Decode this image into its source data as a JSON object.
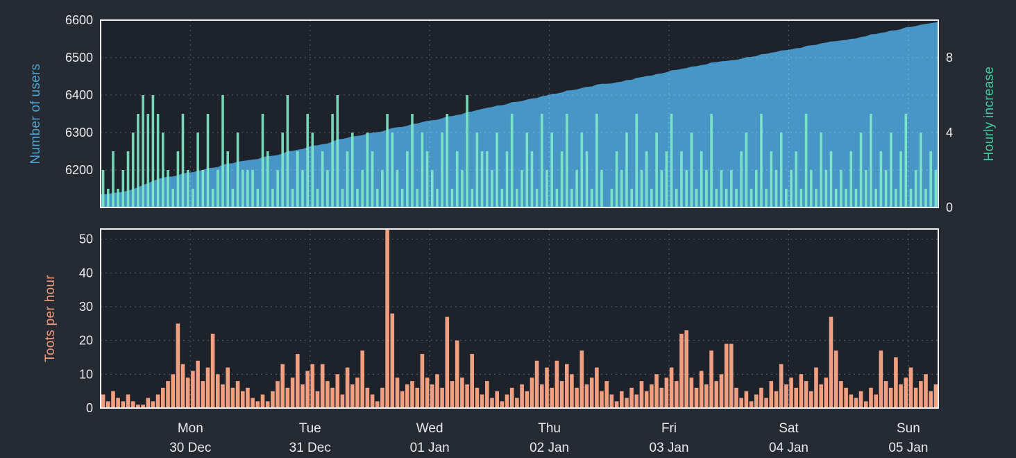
{
  "colors": {
    "background": "#262a33",
    "plot_background": "#1e222b",
    "grid": "rgba(255,255,255,0.28)",
    "border": "#f2f3f5",
    "tick_text": "#e9eaec"
  },
  "x_axis": {
    "day_labels": [
      {
        "day": "Mon",
        "date": "30 Dec"
      },
      {
        "day": "Tue",
        "date": "31 Dec"
      },
      {
        "day": "Wed",
        "date": "01 Jan"
      },
      {
        "day": "Thu",
        "date": "02 Jan"
      },
      {
        "day": "Fri",
        "date": "03 Jan"
      },
      {
        "day": "Sat",
        "date": "04 Jan"
      },
      {
        "day": "Sun",
        "date": "05 Jan"
      }
    ]
  },
  "chart_data": [
    {
      "type": "area+bar",
      "x": {
        "unit": "hour",
        "points": 168,
        "start": "Sun 29 Dec 18:00",
        "end": "Sun 05 Jan 18:00"
      },
      "left_axis": {
        "label": "Number of users",
        "ticks": [
          6200,
          6300,
          6400,
          6500,
          6600
        ],
        "range": [
          6100,
          6600
        ],
        "color": "#4da3cf"
      },
      "right_axis": {
        "label": "Hourly increase",
        "ticks": [
          0,
          4,
          8
        ],
        "range": [
          0,
          10
        ],
        "color": "#3fc9a1"
      },
      "grid": true,
      "series": [
        {
          "name": "Number of users",
          "type": "area",
          "axis": "left",
          "color": "#4796c5",
          "start": 6133,
          "end": 6594,
          "derived_from": "cumulative_sum_of_hourly_increase"
        },
        {
          "name": "Hourly increase",
          "type": "bar",
          "axis": "right",
          "color": "#7feac6",
          "values": [
            2,
            1,
            3,
            1,
            2,
            3,
            4,
            5,
            6,
            5,
            6,
            5,
            4,
            2,
            1,
            3,
            5,
            2,
            1,
            4,
            2,
            5,
            1,
            2,
            6,
            3,
            1,
            4,
            2,
            2,
            2,
            1,
            5,
            3,
            1,
            2,
            4,
            6,
            1,
            3,
            2,
            5,
            4,
            1,
            3,
            2,
            5,
            6,
            1,
            3,
            4,
            1,
            2,
            4,
            3,
            1,
            2,
            5,
            4,
            2,
            1,
            3,
            5,
            1,
            4,
            3,
            2,
            1,
            4,
            5,
            1,
            3,
            2,
            6,
            1,
            4,
            3,
            3,
            2,
            4,
            1,
            3,
            5,
            1,
            2,
            4,
            3,
            1,
            5,
            2,
            4,
            1,
            3,
            5,
            1,
            2,
            4,
            3,
            1,
            5,
            2,
            0,
            1,
            3,
            2,
            4,
            1,
            5,
            2,
            3,
            1,
            4,
            2,
            3,
            5,
            1,
            3,
            2,
            4,
            1,
            3,
            2,
            5,
            1,
            2,
            1,
            2,
            1,
            3,
            4,
            1,
            2,
            5,
            1,
            3,
            2,
            4,
            1,
            2,
            3,
            1,
            5,
            2,
            1,
            4,
            2,
            3,
            1,
            2,
            1,
            3,
            1,
            4,
            2,
            5,
            1,
            3,
            2,
            4,
            1,
            3,
            5,
            1,
            2,
            4,
            1,
            3,
            2
          ]
        }
      ]
    },
    {
      "type": "bar",
      "x": {
        "unit": "hour",
        "points": 168,
        "start": "Sun 29 Dec 18:00",
        "end": "Sun 05 Jan 18:00"
      },
      "left_axis": {
        "label": "Toots per hour",
        "ticks": [
          0,
          10,
          20,
          30,
          40,
          50
        ],
        "range": [
          0,
          53
        ],
        "color": "#ee9b7c"
      },
      "grid": true,
      "series": [
        {
          "name": "Toots per hour",
          "type": "bar",
          "axis": "left",
          "color": "#f09f80",
          "values": [
            4,
            2,
            5,
            3,
            2,
            4,
            2,
            1,
            1,
            3,
            2,
            4,
            6,
            8,
            10,
            25,
            13,
            9,
            11,
            14,
            8,
            12,
            22,
            10,
            7,
            12,
            6,
            8,
            5,
            6,
            3,
            2,
            4,
            2,
            5,
            8,
            13,
            6,
            9,
            16,
            7,
            11,
            13,
            5,
            13,
            8,
            6,
            10,
            4,
            12,
            7,
            9,
            17,
            6,
            4,
            2,
            6,
            53,
            28,
            9,
            5,
            7,
            8,
            6,
            16,
            9,
            7,
            10,
            6,
            27,
            8,
            20,
            9,
            7,
            16,
            6,
            4,
            8,
            3,
            5,
            2,
            4,
            6,
            3,
            7,
            5,
            9,
            14,
            7,
            12,
            6,
            14,
            8,
            13,
            10,
            6,
            17,
            7,
            9,
            12,
            5,
            8,
            4,
            2,
            5,
            3,
            6,
            4,
            8,
            5,
            7,
            10,
            6,
            9,
            12,
            8,
            22,
            23,
            9,
            6,
            11,
            7,
            17,
            8,
            10,
            19,
            19,
            6,
            3,
            5,
            2,
            4,
            6,
            3,
            8,
            5,
            13,
            7,
            9,
            6,
            10,
            8,
            5,
            12,
            7,
            9,
            27,
            17,
            8,
            6,
            4,
            3,
            5,
            2,
            6,
            4,
            17,
            8,
            6,
            15,
            7,
            9,
            12,
            6,
            8,
            10,
            5,
            7
          ]
        }
      ]
    }
  ]
}
